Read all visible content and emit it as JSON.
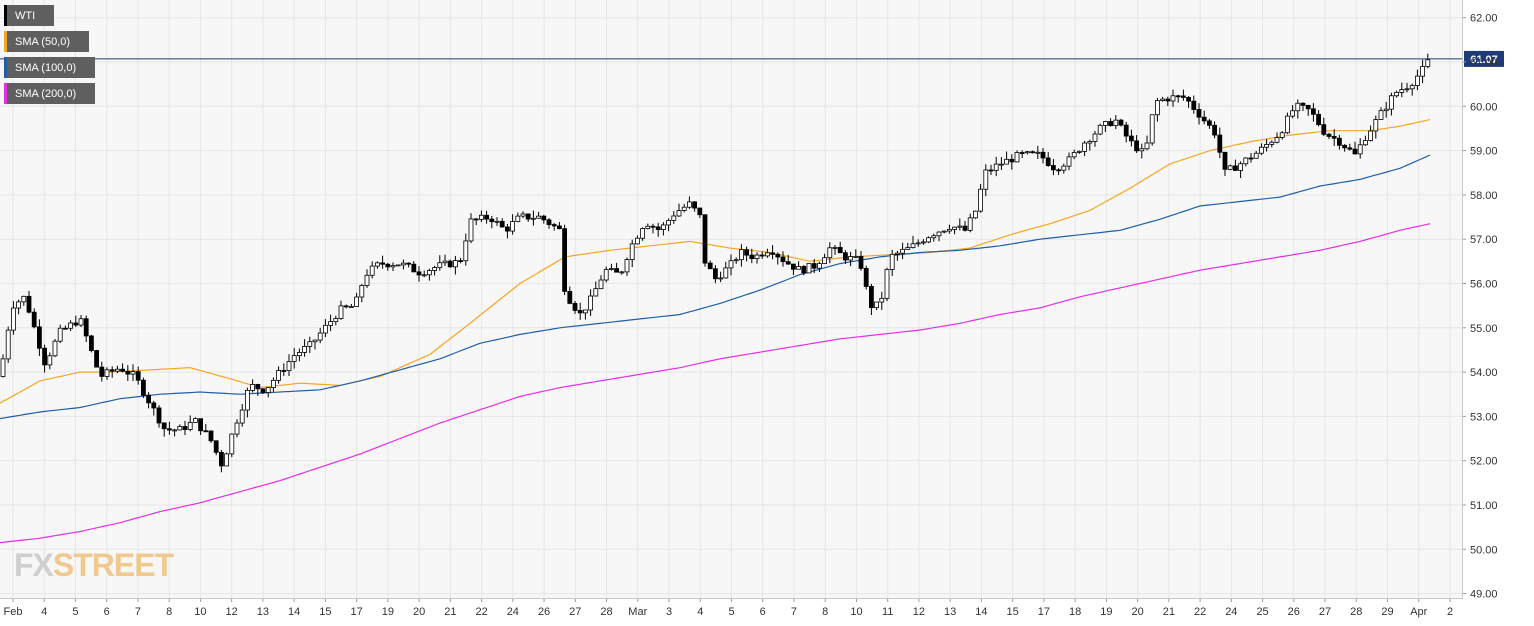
{
  "legend": {
    "items": [
      {
        "label": "WTI",
        "color": "#000000"
      },
      {
        "label": "SMA (50,0)",
        "color": "#f5a623"
      },
      {
        "label": "SMA (100,0)",
        "color": "#1f5fa8"
      },
      {
        "label": "SMA (200,0)",
        "color": "#e62ee6"
      }
    ]
  },
  "watermark": {
    "part1": "FX",
    "part2": "STREET"
  },
  "chart_data": {
    "type": "candlestick",
    "ylim": [
      48.9,
      62.4
    ],
    "y_ticks": [
      "62.00",
      "61.00",
      "60.00",
      "59.00",
      "58.00",
      "57.00",
      "56.00",
      "55.00",
      "54.00",
      "53.00",
      "52.00",
      "51.00",
      "50.00",
      "49.00"
    ],
    "x_labels": [
      "Feb",
      "4",
      "5",
      "6",
      "7",
      "8",
      "10",
      "12",
      "13",
      "14",
      "15",
      "17",
      "19",
      "20",
      "21",
      "22",
      "24",
      "26",
      "27",
      "28",
      "Mar",
      "3",
      "4",
      "5",
      "6",
      "7",
      "8",
      "10",
      "11",
      "12",
      "13",
      "14",
      "15",
      "17",
      "18",
      "19",
      "20",
      "21",
      "22",
      "24",
      "25",
      "26",
      "27",
      "28",
      "29",
      "Apr",
      "2"
    ],
    "current_price": "61.07",
    "current_price_value": 61.07,
    "colors": {
      "up": "#ffffff",
      "down": "#000000",
      "wick": "#000000",
      "price_line": "#1f3b7a",
      "grid": "#e6e6e6",
      "background": "#f7f7f7"
    },
    "sma50_anchors": [
      [
        0,
        53.3
      ],
      [
        40,
        53.8
      ],
      [
        80,
        54.0
      ],
      [
        110,
        54.0
      ],
      [
        150,
        54.05
      ],
      [
        190,
        54.1
      ],
      [
        230,
        53.85
      ],
      [
        260,
        53.65
      ],
      [
        300,
        53.75
      ],
      [
        340,
        53.7
      ],
      [
        380,
        53.9
      ],
      [
        430,
        54.4
      ],
      [
        470,
        55.1
      ],
      [
        520,
        56.0
      ],
      [
        565,
        56.6
      ],
      [
        610,
        56.75
      ],
      [
        650,
        56.85
      ],
      [
        690,
        56.95
      ],
      [
        730,
        56.8
      ],
      [
        770,
        56.7
      ],
      [
        810,
        56.5
      ],
      [
        850,
        56.6
      ],
      [
        890,
        56.65
      ],
      [
        930,
        56.7
      ],
      [
        970,
        56.8
      ],
      [
        1010,
        57.1
      ],
      [
        1050,
        57.35
      ],
      [
        1090,
        57.65
      ],
      [
        1130,
        58.15
      ],
      [
        1170,
        58.7
      ],
      [
        1210,
        59.0
      ],
      [
        1250,
        59.2
      ],
      [
        1290,
        59.35
      ],
      [
        1330,
        59.45
      ],
      [
        1370,
        59.45
      ],
      [
        1400,
        59.55
      ],
      [
        1430,
        59.7
      ]
    ],
    "sma100_anchors": [
      [
        0,
        52.95
      ],
      [
        40,
        53.1
      ],
      [
        80,
        53.2
      ],
      [
        120,
        53.4
      ],
      [
        160,
        53.5
      ],
      [
        200,
        53.55
      ],
      [
        240,
        53.5
      ],
      [
        280,
        53.55
      ],
      [
        320,
        53.6
      ],
      [
        360,
        53.8
      ],
      [
        400,
        54.05
      ],
      [
        440,
        54.3
      ],
      [
        480,
        54.65
      ],
      [
        520,
        54.85
      ],
      [
        560,
        55.0
      ],
      [
        600,
        55.1
      ],
      [
        640,
        55.2
      ],
      [
        680,
        55.3
      ],
      [
        720,
        55.55
      ],
      [
        760,
        55.85
      ],
      [
        800,
        56.2
      ],
      [
        840,
        56.45
      ],
      [
        880,
        56.6
      ],
      [
        920,
        56.7
      ],
      [
        960,
        56.75
      ],
      [
        1000,
        56.85
      ],
      [
        1040,
        57.0
      ],
      [
        1080,
        57.1
      ],
      [
        1120,
        57.2
      ],
      [
        1160,
        57.45
      ],
      [
        1200,
        57.75
      ],
      [
        1240,
        57.85
      ],
      [
        1280,
        57.95
      ],
      [
        1320,
        58.2
      ],
      [
        1360,
        58.35
      ],
      [
        1400,
        58.6
      ],
      [
        1430,
        58.9
      ]
    ],
    "sma200_anchors": [
      [
        0,
        50.15
      ],
      [
        40,
        50.25
      ],
      [
        80,
        50.4
      ],
      [
        120,
        50.6
      ],
      [
        160,
        50.85
      ],
      [
        200,
        51.05
      ],
      [
        240,
        51.3
      ],
      [
        280,
        51.55
      ],
      [
        320,
        51.85
      ],
      [
        360,
        52.15
      ],
      [
        400,
        52.5
      ],
      [
        440,
        52.85
      ],
      [
        480,
        53.15
      ],
      [
        520,
        53.45
      ],
      [
        560,
        53.65
      ],
      [
        600,
        53.8
      ],
      [
        640,
        53.95
      ],
      [
        680,
        54.1
      ],
      [
        720,
        54.3
      ],
      [
        760,
        54.45
      ],
      [
        800,
        54.6
      ],
      [
        840,
        54.75
      ],
      [
        880,
        54.85
      ],
      [
        920,
        54.95
      ],
      [
        960,
        55.1
      ],
      [
        1000,
        55.3
      ],
      [
        1040,
        55.45
      ],
      [
        1080,
        55.7
      ],
      [
        1120,
        55.9
      ],
      [
        1160,
        56.1
      ],
      [
        1200,
        56.3
      ],
      [
        1240,
        56.45
      ],
      [
        1280,
        56.6
      ],
      [
        1320,
        56.75
      ],
      [
        1360,
        56.95
      ],
      [
        1400,
        57.2
      ],
      [
        1430,
        57.35
      ]
    ],
    "price_anchors": [
      [
        0,
        53.9
      ],
      [
        12,
        55.5
      ],
      [
        25,
        55.7
      ],
      [
        45,
        54.2
      ],
      [
        60,
        54.9
      ],
      [
        80,
        55.2
      ],
      [
        100,
        53.9
      ],
      [
        120,
        54.1
      ],
      [
        135,
        53.9
      ],
      [
        150,
        53.3
      ],
      [
        165,
        52.7
      ],
      [
        180,
        52.7
      ],
      [
        195,
        52.9
      ],
      [
        210,
        52.5
      ],
      [
        222,
        51.9
      ],
      [
        235,
        52.8
      ],
      [
        250,
        53.7
      ],
      [
        265,
        53.6
      ],
      [
        280,
        54.0
      ],
      [
        295,
        54.4
      ],
      [
        310,
        54.6
      ],
      [
        325,
        55.0
      ],
      [
        340,
        55.4
      ],
      [
        355,
        55.5
      ],
      [
        365,
        56.2
      ],
      [
        380,
        56.45
      ],
      [
        400,
        56.45
      ],
      [
        420,
        56.25
      ],
      [
        440,
        56.4
      ],
      [
        460,
        56.5
      ],
      [
        470,
        57.4
      ],
      [
        490,
        57.5
      ],
      [
        505,
        57.2
      ],
      [
        520,
        57.5
      ],
      [
        540,
        57.5
      ],
      [
        560,
        57.2
      ],
      [
        565,
        55.8
      ],
      [
        580,
        55.3
      ],
      [
        590,
        55.6
      ],
      [
        605,
        56.3
      ],
      [
        620,
        56.2
      ],
      [
        630,
        56.8
      ],
      [
        645,
        57.4
      ],
      [
        660,
        57.2
      ],
      [
        675,
        57.6
      ],
      [
        690,
        57.8
      ],
      [
        700,
        57.5
      ],
      [
        705,
        56.5
      ],
      [
        715,
        56.1
      ],
      [
        730,
        56.4
      ],
      [
        740,
        56.7
      ],
      [
        755,
        56.6
      ],
      [
        770,
        56.8
      ],
      [
        785,
        56.5
      ],
      [
        800,
        56.3
      ],
      [
        815,
        56.4
      ],
      [
        830,
        56.8
      ],
      [
        845,
        56.6
      ],
      [
        860,
        56.5
      ],
      [
        870,
        55.5
      ],
      [
        880,
        55.5
      ],
      [
        890,
        56.6
      ],
      [
        910,
        56.8
      ],
      [
        930,
        57.1
      ],
      [
        950,
        57.3
      ],
      [
        965,
        57.2
      ],
      [
        975,
        57.6
      ],
      [
        985,
        58.5
      ],
      [
        1000,
        58.7
      ],
      [
        1020,
        58.9
      ],
      [
        1040,
        58.9
      ],
      [
        1055,
        58.6
      ],
      [
        1070,
        58.8
      ],
      [
        1085,
        59.2
      ],
      [
        1100,
        59.5
      ],
      [
        1115,
        59.7
      ],
      [
        1130,
        59.2
      ],
      [
        1145,
        58.9
      ],
      [
        1155,
        60.1
      ],
      [
        1170,
        60.2
      ],
      [
        1185,
        60.2
      ],
      [
        1200,
        59.8
      ],
      [
        1215,
        59.4
      ],
      [
        1225,
        58.5
      ],
      [
        1240,
        58.7
      ],
      [
        1260,
        59.0
      ],
      [
        1280,
        59.4
      ],
      [
        1295,
        60.0
      ],
      [
        1310,
        59.9
      ],
      [
        1325,
        59.4
      ],
      [
        1340,
        59.2
      ],
      [
        1355,
        58.9
      ],
      [
        1365,
        59.3
      ],
      [
        1380,
        59.8
      ],
      [
        1395,
        60.3
      ],
      [
        1410,
        60.5
      ],
      [
        1422,
        60.8
      ],
      [
        1430,
        61.07
      ]
    ]
  }
}
